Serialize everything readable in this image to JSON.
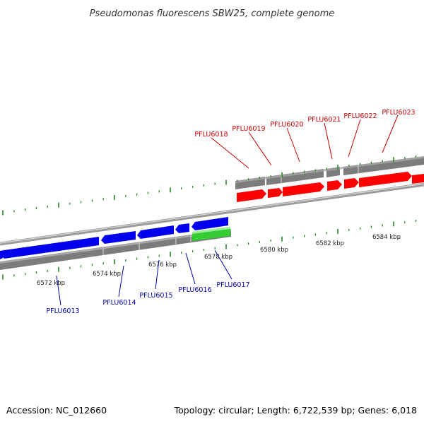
{
  "title": "Pseudomonas fluorescens SBW25, complete genome",
  "footer": {
    "accession": "Accession: NC_012660",
    "summary": "Topology: circular; Length: 6,722,539 bp; Genes: 6,018"
  },
  "colors": {
    "backbone": "#8c8c8c",
    "gene_bar": "#7a7a7a",
    "forward_gene": "#ff0000",
    "reverse_gene": "#0000ee",
    "highlight_gene": "#33cc33",
    "tick": "#228822",
    "label_forward": "#cc0000",
    "label_reverse": "#0000aa"
  },
  "scale_labels": [
    "6572 kbp",
    "6574 kbp",
    "6576 kbp",
    "6578 kbp",
    "6580 kbp",
    "6582 kbp",
    "6584 kbp"
  ],
  "genes_forward": [
    "PFLU6018",
    "PFLU6019",
    "PFLU6020",
    "PFLU6021",
    "PFLU6022",
    "PFLU6023"
  ],
  "genes_reverse": [
    "PFLU6013",
    "PFLU6014",
    "PFLU6015",
    "PFLU6016",
    "PFLU6017"
  ]
}
